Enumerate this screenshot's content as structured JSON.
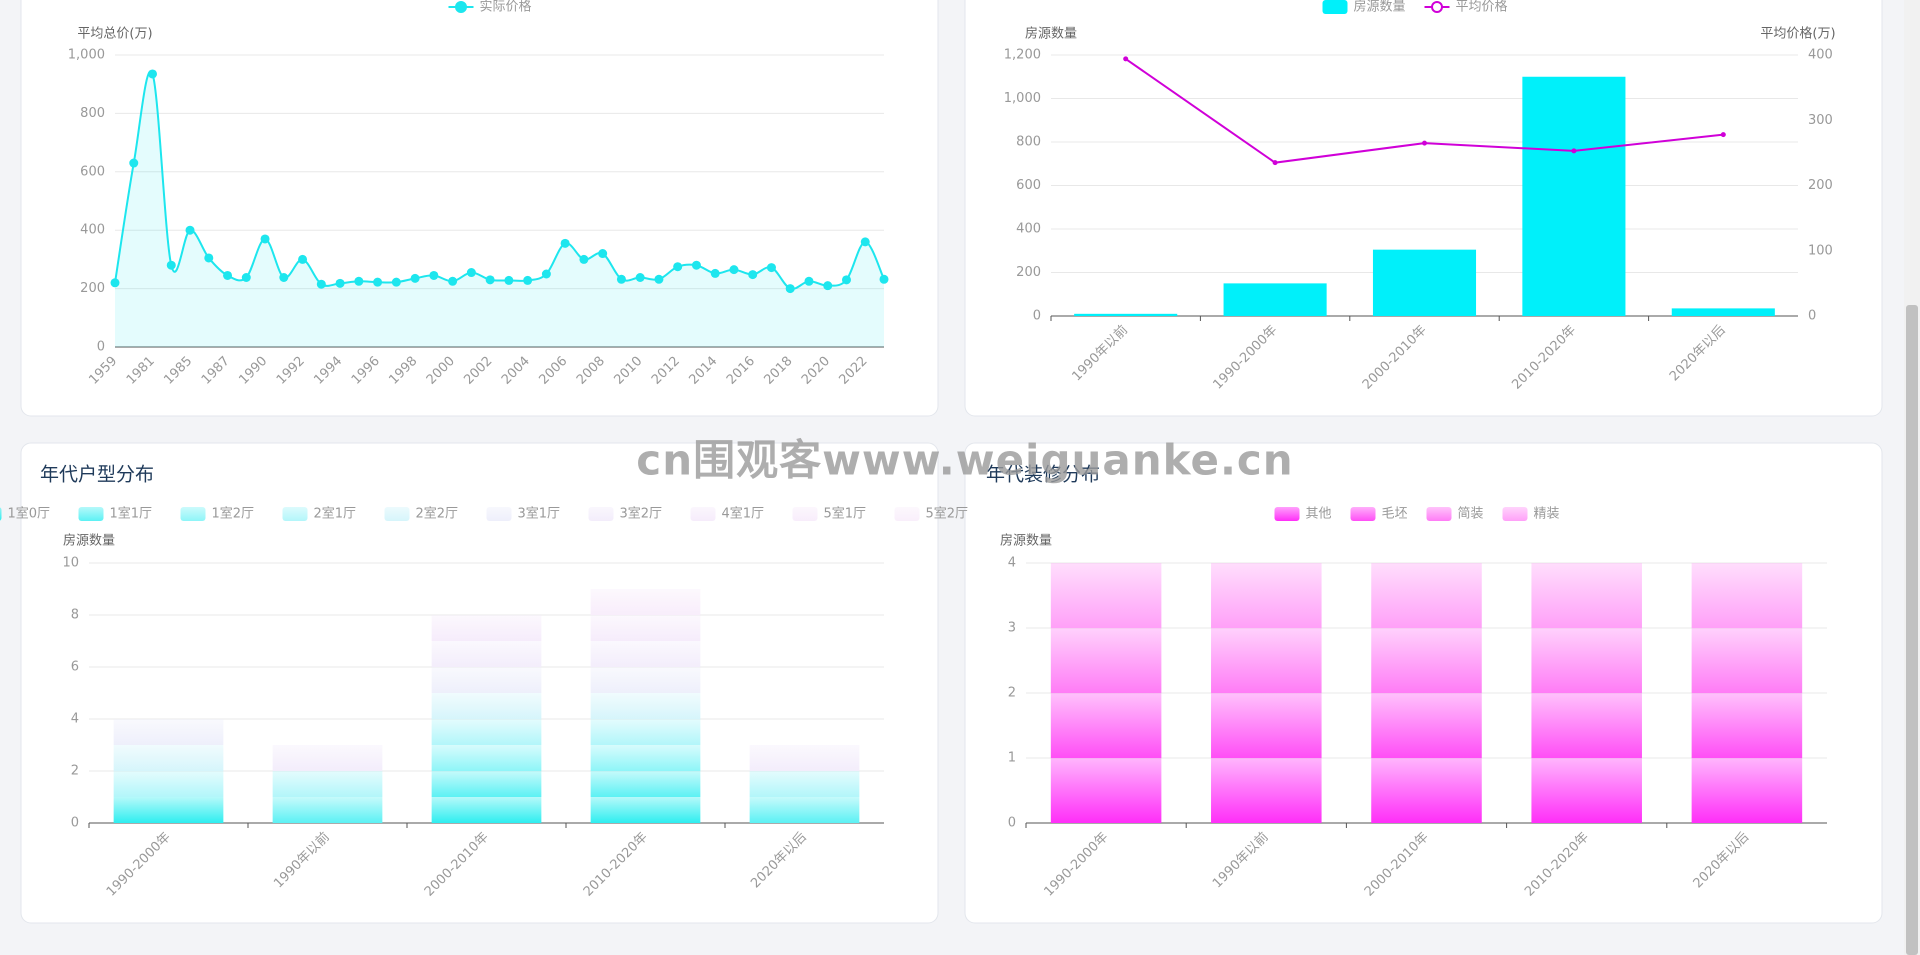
{
  "watermark": "cn围观客www.weiguanke.cn",
  "chart_data": [
    {
      "type": "line",
      "y_label": "平均总价(万)",
      "legend": "top",
      "grid": true,
      "smooth": true,
      "area": true,
      "categories": [
        "1959",
        null,
        "1981",
        null,
        "1985",
        null,
        "1987",
        null,
        "1990",
        null,
        "1992",
        null,
        "1994",
        null,
        "1996",
        null,
        "1998",
        null,
        "2000",
        null,
        "2002",
        null,
        "2004",
        null,
        "2006",
        null,
        "2008",
        null,
        "2010",
        null,
        "2012",
        null,
        "2014",
        null,
        "2016",
        null,
        "2018",
        null,
        "2020",
        null,
        "2022",
        null
      ],
      "series": [
        {
          "name": "实际价格",
          "color": "#1de6ee",
          "values": [
            220,
            630,
            935,
            280,
            400,
            305,
            245,
            238,
            370,
            238,
            300,
            215,
            218,
            225,
            222,
            222,
            235,
            245,
            225,
            255,
            230,
            228,
            228,
            250,
            355,
            300,
            320,
            232,
            238,
            232,
            275,
            280,
            252,
            265,
            248,
            272,
            200,
            225,
            210,
            230,
            360,
            232
          ]
        }
      ],
      "ylim": [
        0,
        1000
      ],
      "yticks": [
        0,
        200,
        400,
        600,
        800,
        {
          "value": 1000,
          "label": "1,000"
        }
      ]
    },
    {
      "type": "bar",
      "y_label": "房源数量",
      "y2_label": "平均价格(万)",
      "legend": "top",
      "grid": true,
      "categories": [
        "1990年以前",
        "1990-2000年",
        "2000-2010年",
        "2010-2020年",
        "2020年以后"
      ],
      "series": [
        {
          "name": "房源数量",
          "color": "#00f0fa",
          "values": [
            10,
            150,
            305,
            1100,
            35
          ]
        },
        {
          "name": "平均价格",
          "type": "line",
          "axis": "y2",
          "color": "#d000d8",
          "values": [
            394,
            235,
            265,
            253,
            278
          ]
        }
      ],
      "ylim": [
        0,
        1200
      ],
      "yticks": [
        0,
        200,
        400,
        600,
        800,
        {
          "value": 1000,
          "label": "1,000"
        },
        {
          "value": 1200,
          "label": "1,200"
        }
      ],
      "y2lim": [
        0,
        400
      ],
      "y2ticks": [
        0,
        100,
        200,
        300,
        400
      ]
    },
    {
      "type": "bar",
      "title": "年代户型分布",
      "y_label": "房源数量",
      "legend": "top",
      "grid": true,
      "stacked": true,
      "categories": [
        "1990-2000年",
        "1990年以前",
        "2000-2010年",
        "2010-2020年",
        "2020年以后"
      ],
      "series": [
        {
          "name": "1室0厅",
          "color": "#2eeef0",
          "values": [
            1,
            0,
            1,
            1,
            0
          ]
        },
        {
          "name": "1室1厅",
          "color": "#5cf1f4",
          "values": [
            0,
            1,
            1,
            1,
            1
          ]
        },
        {
          "name": "1室2厅",
          "color": "#8ef5f8",
          "values": [
            0,
            0,
            1,
            1,
            0
          ]
        },
        {
          "name": "2室1厅",
          "color": "#b2f6fa",
          "values": [
            1,
            1,
            1,
            1,
            1
          ]
        },
        {
          "name": "2室2厅",
          "color": "#d6f5fb",
          "values": [
            1,
            0,
            1,
            1,
            0
          ]
        },
        {
          "name": "3室1厅",
          "color": "#eeeffb",
          "values": [
            1,
            0,
            1,
            1,
            0
          ]
        },
        {
          "name": "3室2厅",
          "color": "#f3edfb",
          "values": [
            0,
            1,
            1,
            1,
            1
          ]
        },
        {
          "name": "4室1厅",
          "color": "#f6ecfb",
          "values": [
            0,
            0,
            1,
            1,
            0
          ]
        },
        {
          "name": "5室1厅",
          "color": "#f8edfb",
          "values": [
            0,
            0,
            0,
            1,
            0
          ]
        },
        {
          "name": "5室2厅",
          "color": "#f9effb",
          "values": [
            0,
            0,
            0,
            0,
            0
          ]
        }
      ],
      "ylim": [
        0,
        10
      ],
      "yticks": [
        0,
        2,
        4,
        6,
        8,
        10
      ]
    },
    {
      "type": "bar",
      "title": "年代装修分布",
      "y_label": "房源数量",
      "legend": "top",
      "grid": true,
      "stacked": true,
      "categories": [
        "1990-2000年",
        "1990年以前",
        "2000-2010年",
        "2010-2020年",
        "2020年以后"
      ],
      "series": [
        {
          "name": "其他",
          "color": "#ff2ef8",
          "values": [
            1,
            1,
            1,
            1,
            1
          ]
        },
        {
          "name": "毛坯",
          "color": "#ff4ef6",
          "values": [
            1,
            1,
            1,
            1,
            1
          ]
        },
        {
          "name": "简装",
          "color": "#ff7cf6",
          "values": [
            1,
            1,
            1,
            1,
            1
          ]
        },
        {
          "name": "精装",
          "color": "#ffa0f8",
          "values": [
            1,
            1,
            1,
            1,
            1
          ]
        }
      ],
      "ylim": [
        0,
        4
      ],
      "yticks": [
        0,
        1,
        2,
        3,
        4
      ]
    }
  ]
}
